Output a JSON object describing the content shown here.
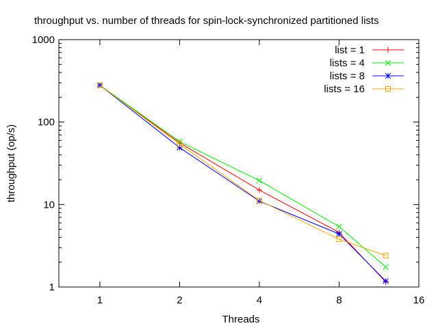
{
  "chart_data": {
    "type": "line",
    "title": "throughput vs. number of threads for spin-lock-synchronized partitioned lists",
    "xlabel": "Threads",
    "ylabel": "throughput (op/s)",
    "x_scale": "log2",
    "y_scale": "log10",
    "xlim": [
      0.7,
      16
    ],
    "ylim": [
      1,
      1000
    ],
    "x_ticks": [
      1,
      2,
      4,
      8,
      16
    ],
    "x_tick_labels": [
      "1",
      "2",
      "4",
      "8",
      "16"
    ],
    "y_ticks": [
      1,
      10,
      100,
      1000
    ],
    "y_tick_labels": [
      "1",
      "10",
      "100",
      "1000"
    ],
    "grid": false,
    "legend_position": "top-right",
    "series": [
      {
        "name": "list = 1",
        "color": "#ff0000",
        "marker": "plus",
        "x": [
          1,
          2,
          4,
          8,
          12
        ],
        "y": [
          280,
          56,
          15,
          4.6,
          1.15
        ]
      },
      {
        "name": "lists = 4",
        "color": "#00ee00",
        "marker": "cross",
        "x": [
          1,
          2,
          4,
          8,
          12
        ],
        "y": [
          280,
          58,
          19.5,
          5.4,
          1.75
        ]
      },
      {
        "name": "lists = 8",
        "color": "#0000ff",
        "marker": "star",
        "x": [
          1,
          2,
          4,
          8,
          12
        ],
        "y": [
          280,
          49,
          11,
          4.4,
          1.18
        ]
      },
      {
        "name": "lists = 16",
        "color": "#ffa500",
        "marker": "square",
        "x": [
          1,
          2,
          4,
          8,
          12
        ],
        "y": [
          280,
          54,
          11.2,
          3.8,
          2.4
        ]
      }
    ]
  }
}
